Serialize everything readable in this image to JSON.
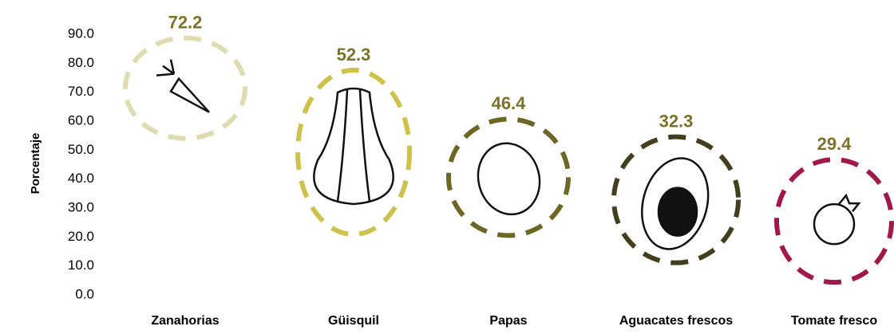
{
  "chart_data": {
    "type": "pictogram",
    "y_label": "Porcentaje",
    "categories": [
      "Zanahorias",
      "Güisquil",
      "Papas",
      "Aguacates frescos",
      "Tomate fresco"
    ],
    "values": [
      72.2,
      52.3,
      46.4,
      32.3,
      29.4
    ],
    "colors": [
      "#dedcb0",
      "#cfc24c",
      "#6d6624",
      "#433f1e",
      "#a2184a"
    ],
    "label_color": "#7b7428",
    "ylim": [
      0,
      90
    ],
    "yticks": [
      {
        "value": 0,
        "label": "0.0"
      },
      {
        "value": 10,
        "label": "10.0"
      },
      {
        "value": 20,
        "label": "20.0"
      },
      {
        "value": 30,
        "label": "30.0"
      },
      {
        "value": 40,
        "label": "40.0"
      },
      {
        "value": 50,
        "label": "50.0"
      },
      {
        "value": 60,
        "label": "60.0"
      },
      {
        "value": 70,
        "label": "70.0"
      },
      {
        "value": 80,
        "label": "80.0"
      },
      {
        "value": 90,
        "label": "90.0"
      }
    ]
  }
}
